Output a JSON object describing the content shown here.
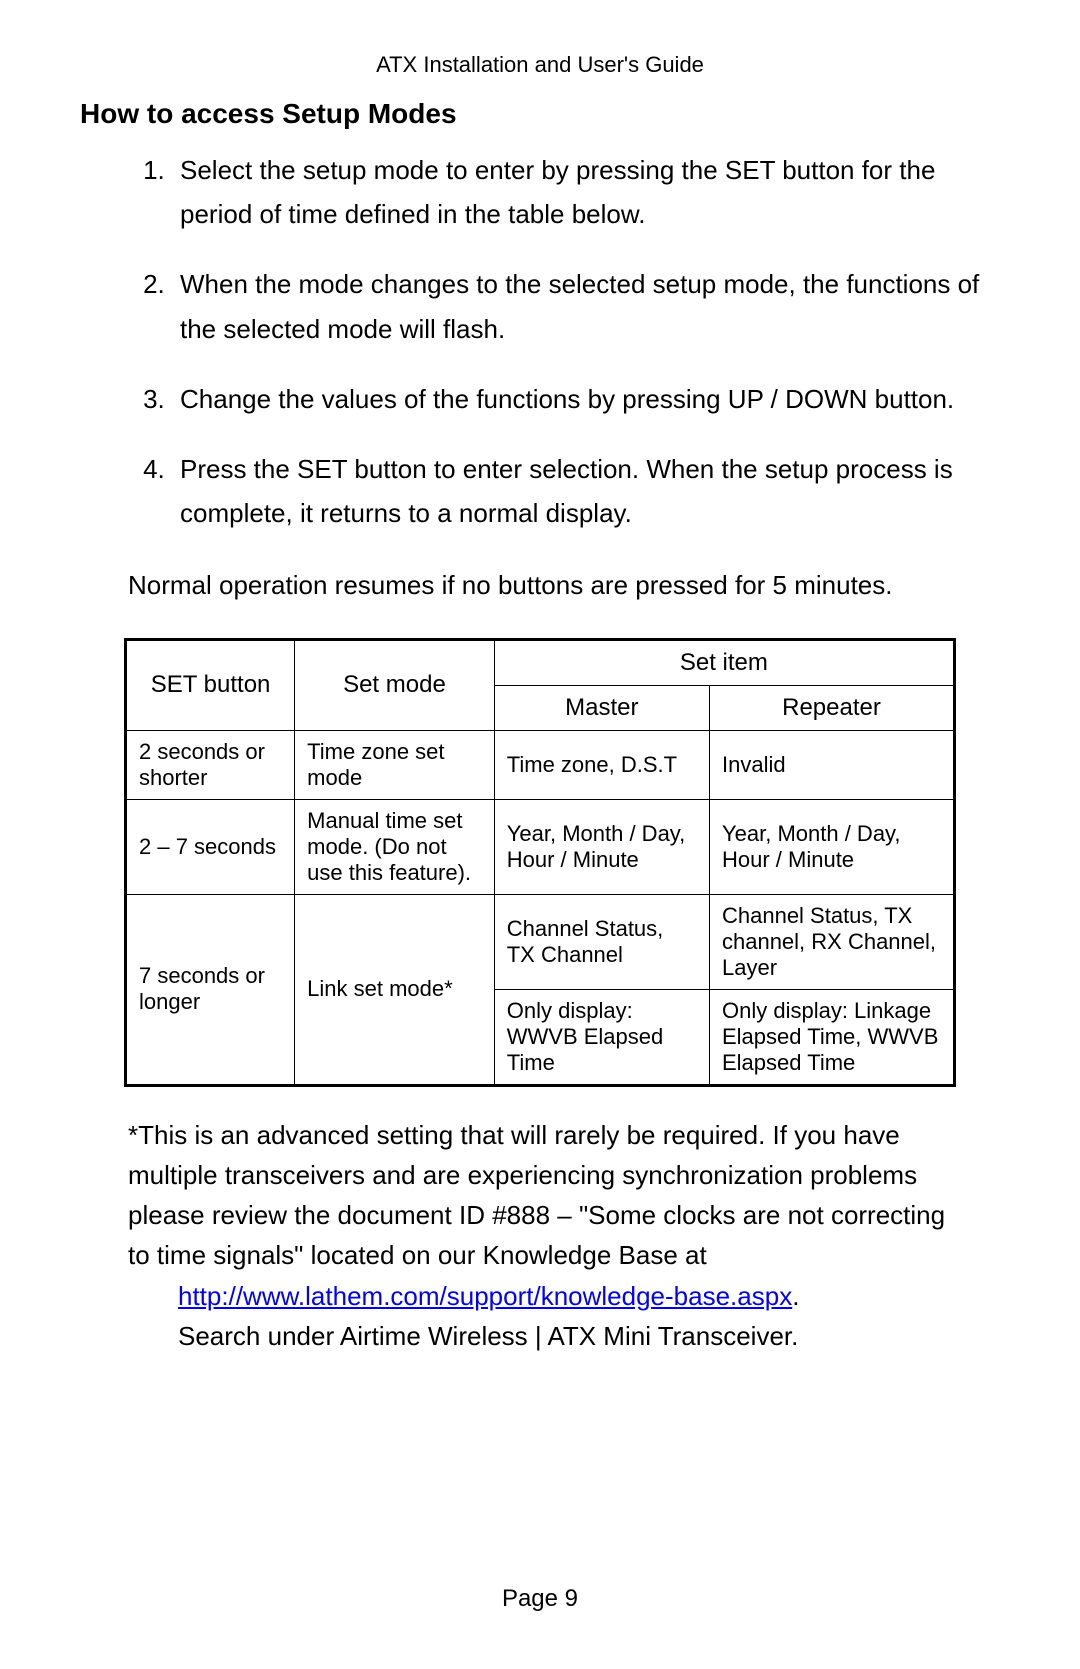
{
  "header": {
    "doc_title": "ATX Installation and User's Guide"
  },
  "section": {
    "title": "How to access Setup Modes"
  },
  "steps": [
    "Select the setup mode to enter by pressing the SET button for the period of time defined in the table below.",
    "When the mode changes to the selected setup mode, the functions of the selected mode will flash.",
    "Change the values of the functions by pressing UP / DOWN button.",
    "Press the SET button to enter selection. When the setup process is complete, it returns to a normal display."
  ],
  "note_text": "Normal operation resumes if no buttons are pressed for 5 minutes.",
  "table": {
    "columns": {
      "set_button": "SET button",
      "set_mode": "Set mode",
      "set_item": "Set item",
      "master": "Master",
      "repeater": "Repeater"
    },
    "rows": [
      {
        "set_button": "2 seconds or shorter",
        "set_mode": "Time zone set mode",
        "master": "Time zone, D.S.T",
        "repeater": "Invalid"
      },
      {
        "set_button": "2 – 7 seconds",
        "set_mode": "Manual time set mode.   (Do not use this feature).",
        "master": "Year, Month / Day, Hour / Minute",
        "repeater": "Year, Month / Day, Hour / Minute"
      },
      {
        "set_button": "7 seconds or longer",
        "set_mode": "Link set mode*",
        "master_a": "Channel Status, TX Channel",
        "repeater_a": "Channel Status, TX channel, RX Channel, Layer",
        "master_b": "Only display: WWVB Elapsed Time",
        "repeater_b": "Only display: Linkage Elapsed Time, WWVB Elapsed Time"
      }
    ],
    "border_color": "#000000",
    "background_color": "#ffffff",
    "font_size_header": 24,
    "font_size_cell": 22
  },
  "footnote": {
    "text_before_link": "*This is an advanced setting that will rarely be required. If you have multiple transceivers and are experiencing synchronization problems please review the document ID #888 – \"Some clocks are not correcting to time signals\" located on our Knowledge Base at ",
    "link_text": "http://www.lathem.com/support/knowledge-base.aspx",
    "after_link_period": ".",
    "text_after_link": "Search under Airtime Wireless | ATX Mini Transceiver."
  },
  "page_number": "Page 9",
  "colors": {
    "link": "#0000ee",
    "text": "#000000",
    "background": "#ffffff"
  }
}
